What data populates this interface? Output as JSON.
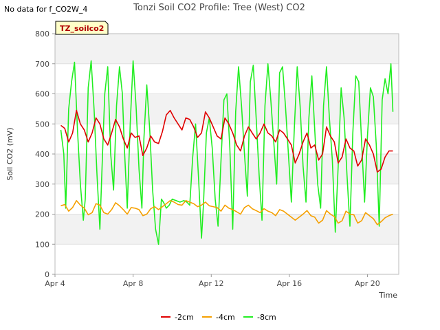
{
  "note": "No data for f_CO2W_4",
  "badge": "TZ_soilco2",
  "chart_data": {
    "type": "line",
    "title": "Tonzi Soil CO2 Profile: Tree (West) CO2",
    "xlabel": "Time",
    "ylabel": "Soil CO2 (mV)",
    "xlim": [
      4,
      21.6
    ],
    "ylim": [
      0,
      800
    ],
    "yticks": [
      0,
      100,
      200,
      300,
      400,
      500,
      600,
      700,
      800
    ],
    "xticks": [
      4,
      8,
      12,
      16,
      20
    ],
    "xtick_labels": [
      "Apr 4",
      "Apr 8",
      "Apr 12",
      "Apr 16",
      "Apr 20"
    ],
    "legend_position": "bottom-center",
    "series": [
      {
        "name": "-2cm",
        "color": "#e00000",
        "x": [
          4.3,
          4.5,
          4.7,
          4.9,
          5.1,
          5.3,
          5.5,
          5.7,
          5.9,
          6.1,
          6.3,
          6.5,
          6.7,
          6.9,
          7.1,
          7.3,
          7.5,
          7.7,
          7.9,
          8.1,
          8.3,
          8.5,
          8.7,
          8.9,
          9.1,
          9.3,
          9.5,
          9.7,
          9.9,
          10.1,
          10.3,
          10.5,
          10.7,
          10.9,
          11.1,
          11.3,
          11.5,
          11.7,
          11.9,
          12.1,
          12.3,
          12.5,
          12.7,
          12.9,
          13.1,
          13.3,
          13.5,
          13.7,
          13.9,
          14.1,
          14.3,
          14.5,
          14.7,
          14.9,
          15.1,
          15.3,
          15.5,
          15.7,
          15.9,
          16.1,
          16.3,
          16.5,
          16.7,
          16.9,
          17.1,
          17.3,
          17.5,
          17.7,
          17.9,
          18.1,
          18.3,
          18.5,
          18.7,
          18.9,
          19.1,
          19.3,
          19.5,
          19.7,
          19.9,
          20.1,
          20.3,
          20.5,
          20.7,
          20.9,
          21.1,
          21.3
        ],
        "y": [
          495,
          485,
          440,
          470,
          545,
          500,
          480,
          440,
          470,
          520,
          500,
          450,
          430,
          470,
          515,
          490,
          450,
          420,
          470,
          455,
          460,
          395,
          420,
          460,
          440,
          435,
          475,
          530,
          545,
          520,
          500,
          480,
          520,
          515,
          490,
          455,
          470,
          540,
          520,
          490,
          460,
          450,
          520,
          500,
          470,
          430,
          410,
          460,
          490,
          470,
          450,
          470,
          500,
          470,
          460,
          440,
          480,
          470,
          450,
          430,
          370,
          400,
          440,
          470,
          420,
          430,
          380,
          400,
          490,
          460,
          440,
          370,
          390,
          450,
          420,
          410,
          360,
          380,
          450,
          430,
          400,
          340,
          350,
          390,
          410,
          410
        ]
      },
      {
        "name": "-4cm",
        "color": "#f5a000",
        "x": [
          4.3,
          4.5,
          4.7,
          4.9,
          5.1,
          5.3,
          5.5,
          5.7,
          5.9,
          6.1,
          6.3,
          6.5,
          6.7,
          6.9,
          7.1,
          7.3,
          7.5,
          7.7,
          7.9,
          8.1,
          8.3,
          8.5,
          8.7,
          8.9,
          9.1,
          9.3,
          9.5,
          9.7,
          9.9,
          10.1,
          10.3,
          10.5,
          10.7,
          10.9,
          11.1,
          11.3,
          11.5,
          11.7,
          11.9,
          12.1,
          12.3,
          12.5,
          12.7,
          12.9,
          13.1,
          13.3,
          13.5,
          13.7,
          13.9,
          14.1,
          14.3,
          14.5,
          14.7,
          14.9,
          15.1,
          15.3,
          15.5,
          15.7,
          15.9,
          16.1,
          16.3,
          16.5,
          16.7,
          16.9,
          17.1,
          17.3,
          17.5,
          17.7,
          17.9,
          18.1,
          18.3,
          18.5,
          18.7,
          18.9,
          19.1,
          19.3,
          19.5,
          19.7,
          19.9,
          20.1,
          20.3,
          20.5,
          20.7,
          20.9,
          21.1,
          21.3
        ],
        "y": [
          228,
          232,
          210,
          222,
          245,
          230,
          220,
          198,
          205,
          235,
          230,
          205,
          200,
          215,
          238,
          228,
          215,
          200,
          222,
          220,
          215,
          195,
          200,
          218,
          225,
          215,
          225,
          235,
          245,
          240,
          232,
          230,
          245,
          240,
          235,
          225,
          230,
          240,
          228,
          225,
          222,
          210,
          230,
          220,
          215,
          208,
          200,
          222,
          230,
          218,
          212,
          205,
          218,
          210,
          205,
          195,
          215,
          210,
          200,
          190,
          180,
          190,
          200,
          212,
          195,
          190,
          170,
          180,
          212,
          200,
          192,
          170,
          178,
          210,
          200,
          198,
          170,
          178,
          205,
          195,
          185,
          165,
          175,
          188,
          195,
          200
        ]
      },
      {
        "name": "-8cm",
        "color": "#22ee22",
        "x": [
          4.3,
          4.45,
          4.55,
          4.7,
          4.85,
          5.0,
          5.15,
          5.3,
          5.45,
          5.55,
          5.7,
          5.85,
          6.0,
          6.15,
          6.3,
          6.45,
          6.55,
          6.7,
          6.85,
          7.0,
          7.15,
          7.3,
          7.45,
          7.55,
          7.7,
          7.85,
          8.0,
          8.15,
          8.3,
          8.45,
          8.55,
          8.7,
          8.85,
          9.0,
          9.15,
          9.3,
          9.45,
          9.55,
          9.7,
          9.85,
          10.0,
          10.2,
          10.4,
          10.6,
          10.75,
          10.9,
          11.05,
          11.2,
          11.35,
          11.5,
          11.6,
          11.75,
          11.9,
          12.05,
          12.2,
          12.35,
          12.5,
          12.65,
          12.8,
          12.95,
          13.1,
          13.25,
          13.4,
          13.55,
          13.7,
          13.85,
          14.0,
          14.15,
          14.3,
          14.45,
          14.6,
          14.75,
          14.9,
          15.05,
          15.2,
          15.35,
          15.5,
          15.65,
          15.8,
          15.95,
          16.1,
          16.25,
          16.4,
          16.55,
          16.7,
          16.85,
          17.0,
          17.15,
          17.3,
          17.45,
          17.6,
          17.75,
          17.9,
          18.05,
          18.2,
          18.35,
          18.5,
          18.65,
          18.8,
          18.95,
          19.1,
          19.25,
          19.4,
          19.55,
          19.7,
          19.85,
          20.0,
          20.15,
          20.3,
          20.45,
          20.6,
          20.75,
          20.9,
          21.05,
          21.2,
          21.3
        ],
        "y": [
          480,
          400,
          220,
          550,
          640,
          705,
          480,
          300,
          180,
          250,
          620,
          710,
          550,
          330,
          150,
          430,
          600,
          690,
          400,
          280,
          560,
          690,
          600,
          420,
          220,
          500,
          710,
          560,
          350,
          220,
          450,
          630,
          480,
          280,
          150,
          100,
          250,
          240,
          220,
          230,
          250,
          245,
          240,
          245,
          240,
          230,
          390,
          500,
          320,
          120,
          230,
          470,
          520,
          420,
          250,
          160,
          380,
          580,
          600,
          420,
          150,
          540,
          690,
          560,
          400,
          260,
          640,
          695,
          520,
          330,
          180,
          560,
          700,
          580,
          440,
          300,
          670,
          690,
          560,
          400,
          240,
          480,
          690,
          560,
          360,
          240,
          520,
          660,
          480,
          300,
          220,
          560,
          690,
          520,
          380,
          140,
          360,
          620,
          520,
          330,
          160,
          470,
          660,
          640,
          440,
          240,
          460,
          620,
          590,
          430,
          160,
          580,
          650,
          600,
          700,
          540
        ]
      }
    ]
  }
}
